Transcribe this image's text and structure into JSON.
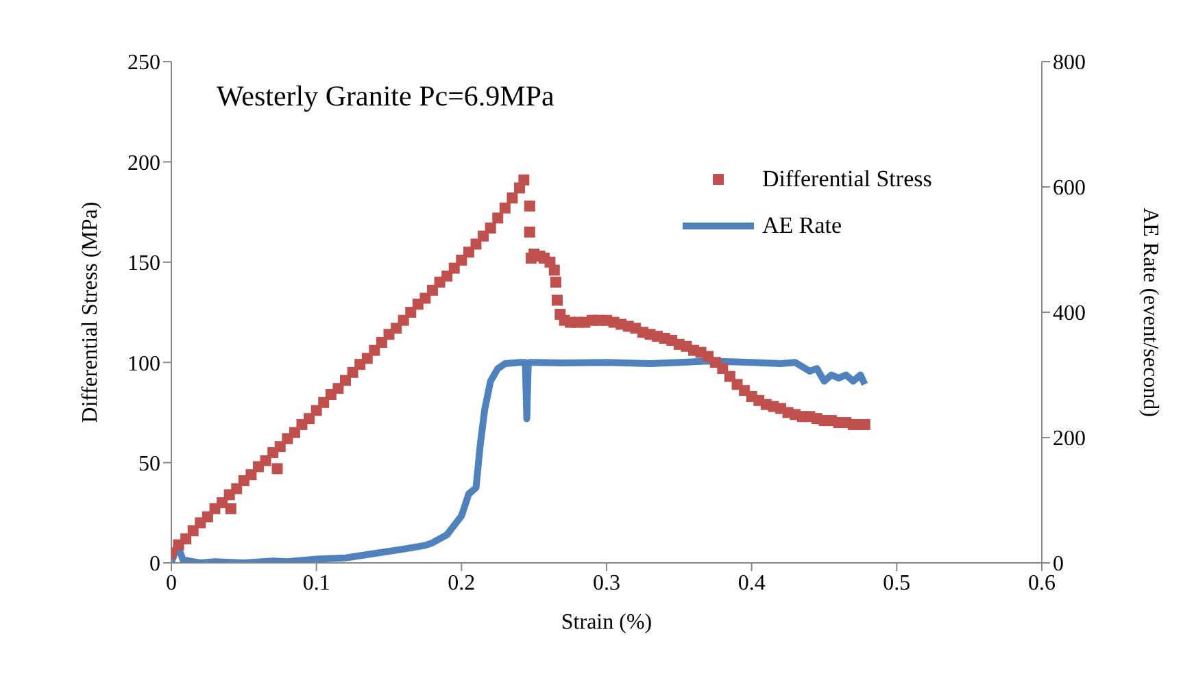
{
  "chart_data": {
    "type": "scatter",
    "title": "Westerly Granite Pc=6.9MPa",
    "xlabel": "Strain (%)",
    "ylabel": "Differential  Stress (MPa)",
    "y2label": "AE Rate (event/second)",
    "xlim": [
      0,
      0.6
    ],
    "xticks": [
      0,
      0.1,
      0.2,
      0.3,
      0.4,
      0.5,
      0.6
    ],
    "ylim": [
      0,
      250
    ],
    "yticks": [
      0,
      50,
      100,
      150,
      200,
      250
    ],
    "y2lim": [
      0,
      800
    ],
    "y2ticks": [
      0,
      200,
      400,
      600,
      800
    ],
    "grid": false,
    "legend": "top right",
    "series": [
      {
        "name": "Differential Stress",
        "marker": "square",
        "color": "#c0504d",
        "x": [
          0,
          0.005,
          0.01,
          0.015,
          0.02,
          0.025,
          0.03,
          0.035,
          0.04,
          0.041,
          0.045,
          0.05,
          0.055,
          0.06,
          0.065,
          0.07,
          0.073,
          0.075,
          0.08,
          0.085,
          0.09,
          0.095,
          0.1,
          0.105,
          0.11,
          0.115,
          0.12,
          0.125,
          0.13,
          0.135,
          0.14,
          0.145,
          0.15,
          0.155,
          0.16,
          0.165,
          0.17,
          0.175,
          0.18,
          0.185,
          0.19,
          0.195,
          0.2,
          0.205,
          0.21,
          0.215,
          0.22,
          0.225,
          0.23,
          0.235,
          0.24,
          0.243,
          0.247,
          0.247,
          0.248,
          0.25,
          0.254,
          0.257,
          0.261,
          0.264,
          0.265,
          0.266,
          0.268,
          0.271,
          0.275,
          0.28,
          0.285,
          0.29,
          0.295,
          0.3,
          0.305,
          0.31,
          0.315,
          0.32,
          0.325,
          0.33,
          0.335,
          0.34,
          0.345,
          0.35,
          0.355,
          0.36,
          0.365,
          0.37,
          0.375,
          0.38,
          0.385,
          0.39,
          0.395,
          0.4,
          0.405,
          0.41,
          0.415,
          0.42,
          0.425,
          0.43,
          0.435,
          0.44,
          0.445,
          0.45,
          0.455,
          0.46,
          0.465,
          0.47,
          0.475,
          0.478
        ],
        "values": [
          5,
          9,
          12,
          16,
          20,
          23,
          27,
          30,
          34,
          27,
          37,
          41,
          44,
          48,
          51,
          55,
          47,
          58,
          62,
          65,
          69,
          72,
          76,
          80,
          84,
          87,
          91,
          95,
          99,
          102,
          106,
          110,
          114,
          117,
          121,
          125,
          129,
          132,
          136,
          140,
          143,
          147,
          151,
          155,
          159,
          163,
          167,
          172,
          177,
          182,
          187,
          191,
          178,
          165,
          152,
          154,
          153,
          152,
          150,
          146,
          140,
          131,
          124,
          121,
          120,
          120,
          120,
          121,
          121,
          121,
          120,
          119,
          118,
          117,
          115,
          114,
          113,
          112,
          111,
          109,
          108,
          106,
          105,
          103,
          100,
          97,
          93,
          89,
          86,
          83,
          81,
          79,
          78,
          77,
          75,
          74,
          73,
          73,
          72,
          71,
          71,
          70,
          70,
          69,
          69,
          69
        ]
      },
      {
        "name": "AE Rate",
        "type": "line",
        "axis": "y2",
        "color": "#4f81bd",
        "x": [
          0,
          0.004,
          0.008,
          0.012,
          0.02,
          0.03,
          0.05,
          0.07,
          0.08,
          0.1,
          0.12,
          0.14,
          0.16,
          0.175,
          0.18,
          0.19,
          0.195,
          0.2,
          0.205,
          0.21,
          0.213,
          0.216,
          0.22,
          0.225,
          0.23,
          0.24,
          0.244,
          0.245,
          0.246,
          0.247,
          0.25,
          0.27,
          0.3,
          0.33,
          0.35,
          0.37,
          0.4,
          0.42,
          0.43,
          0.44,
          0.445,
          0.45,
          0.455,
          0.46,
          0.465,
          0.47,
          0.475,
          0.478
        ],
        "values": [
          0,
          30,
          5,
          3,
          0,
          2,
          0,
          3,
          2,
          6,
          8,
          15,
          22,
          28,
          32,
          45,
          60,
          75,
          110,
          120,
          190,
          245,
          290,
          310,
          318,
          320,
          320,
          230,
          318,
          320,
          320,
          319,
          320,
          318,
          320,
          322,
          320,
          318,
          320,
          306,
          310,
          290,
          300,
          295,
          300,
          290,
          300,
          285
        ]
      }
    ]
  }
}
